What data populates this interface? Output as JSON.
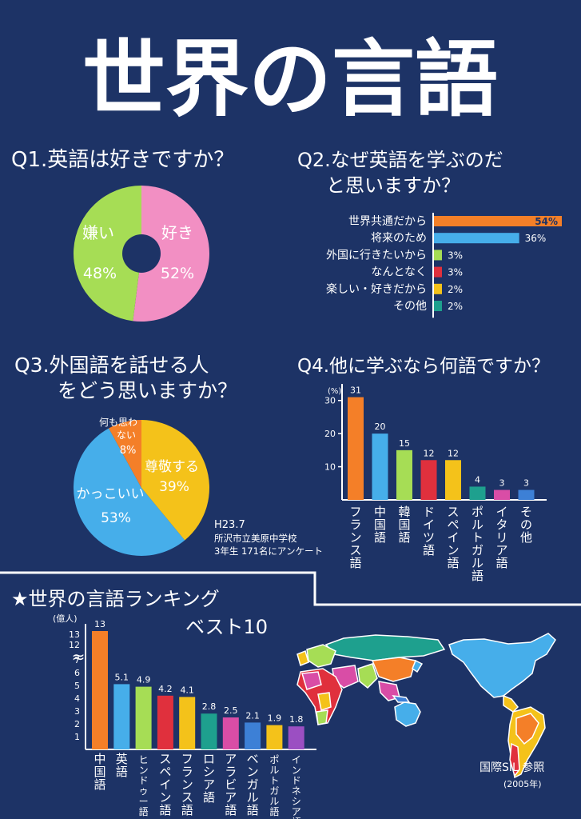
{
  "poster": {
    "title": "世界の言語",
    "colors": {
      "background": "#1d3366",
      "pink": "#f28fc3",
      "green": "#a6dd55",
      "yellow": "#f4c21a",
      "blue": "#46aeea",
      "orange": "#f47f28"
    }
  },
  "chart_data": [
    {
      "type": "pie",
      "title": "Q1.英語は好きですか？",
      "labels": [
        "好き",
        "嫌い"
      ],
      "label_values": [
        "52%",
        "48%"
      ],
      "values": [
        52,
        48
      ],
      "colors": [
        "#f28fc3",
        "#a6dd55"
      ]
    },
    {
      "type": "bar",
      "title_line1": "Q2.なぜ英語を学ぶのだ",
      "title_line2": "と思いますか？",
      "categories": [
        "世界共通だから",
        "将来のため",
        "外国に行きたいから",
        "なんとなく",
        "楽しい・好きだから",
        "その他"
      ],
      "values": [
        54,
        36,
        3,
        3,
        2,
        2
      ],
      "value_labels": [
        "54%",
        "36%",
        "3%",
        "3%",
        "2%",
        "2%"
      ],
      "colors": [
        "#f47f28",
        "#46aeea",
        "#a6dd55",
        "#e0303d",
        "#f4c21a",
        "#1ea08e"
      ],
      "orientation": "horizontal"
    },
    {
      "type": "pie",
      "title_line1": "Q3.外国語を話せる人",
      "title_line2": "をどう思いますか？",
      "labels": [
        "尊敬する",
        "かっこいい",
        "何も思わない"
      ],
      "label_values": [
        "39%",
        "53%",
        "8%"
      ],
      "values": [
        39,
        53,
        8
      ],
      "colors": [
        "#f4c21a",
        "#46aeea",
        "#f47f28"
      ],
      "note_line1": "H23.7",
      "note_line2": "所沢市立美原中学校",
      "note_line3": "3年生 171名にアンケート"
    },
    {
      "type": "bar",
      "title": "Q4.他に学ぶなら何語ですか？",
      "ylabel": "(%)",
      "yticks": [
        "30",
        "20",
        "10"
      ],
      "categories": [
        "フランス語",
        "中国語",
        "韓国語",
        "ドイツ語",
        "スペイン語",
        "ポルトガル語",
        "イタリア語",
        "その他"
      ],
      "values": [
        31,
        20,
        15,
        12,
        12,
        4,
        3,
        3
      ],
      "colors": [
        "#f47f28",
        "#46aeea",
        "#a6dd55",
        "#e0303d",
        "#f4c21a",
        "#1ea08e",
        "#d94da6",
        "#3d80d6"
      ],
      "ylim": [
        0,
        35
      ]
    },
    {
      "type": "bar",
      "title_line1": "★世界の言語ランキング",
      "title_line2": "ベスト10",
      "ylabel": "(億人)",
      "yticks": [
        "13",
        "12",
        "7",
        "6",
        "5",
        "4",
        "3",
        "2",
        "1"
      ],
      "axis_break": "≈",
      "categories": [
        "中国語",
        "英語",
        "ヒンドゥー語",
        "スペイン語",
        "フランス語",
        "ロシア語",
        "アラビア語",
        "ベンガル語",
        "ポルトガル語",
        "インドネシア語"
      ],
      "values": [
        13,
        5.1,
        4.9,
        4.2,
        4.1,
        2.8,
        2.5,
        2.1,
        1.9,
        1.8
      ],
      "value_labels": [
        "13",
        "5.1",
        "4.9",
        "4.2",
        "4.1",
        "2.8",
        "2.5",
        "2.1",
        "1.9",
        "1.8"
      ],
      "colors": [
        "#f47f28",
        "#46aeea",
        "#a6dd55",
        "#e0303d",
        "#f4c21a",
        "#1ea08e",
        "#d94da6",
        "#3d80d6",
        "#f4c21a",
        "#9b4fc2"
      ],
      "source_line1": "国際SIL 参照",
      "source_line2": "(2005年)"
    }
  ]
}
